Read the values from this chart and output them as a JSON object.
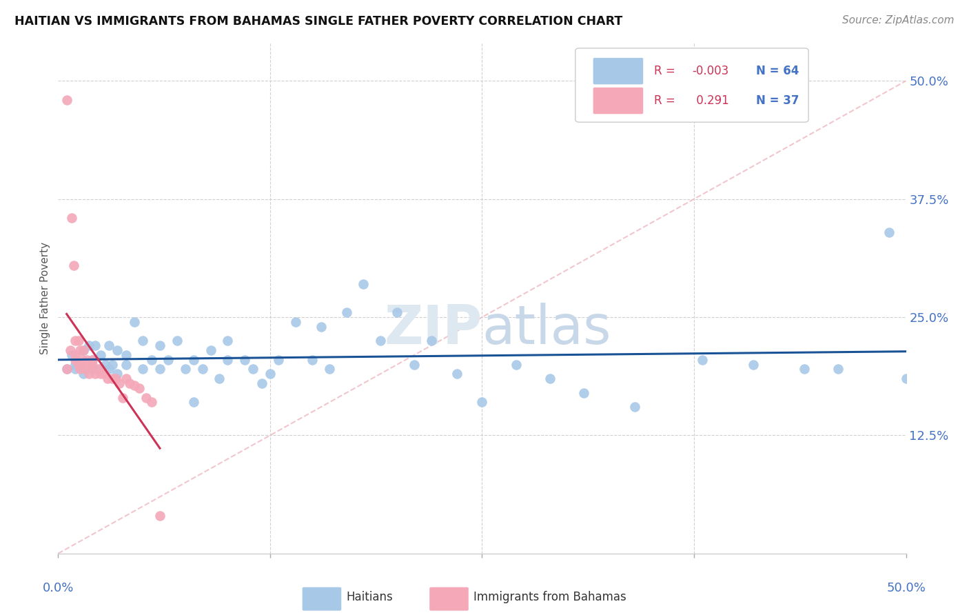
{
  "title": "HAITIAN VS IMMIGRANTS FROM BAHAMAS SINGLE FATHER POVERTY CORRELATION CHART",
  "source": "Source: ZipAtlas.com",
  "ylabel": "Single Father Poverty",
  "legend1_r": "-0.003",
  "legend1_n": "64",
  "legend2_r": "0.291",
  "legend2_n": "37",
  "xlim": [
    0.0,
    0.5
  ],
  "ylim": [
    0.0,
    0.54
  ],
  "blue_color": "#a8c8e8",
  "pink_color": "#f4a8b8",
  "blue_line_color": "#1a5296",
  "pink_line_color": "#cc3355",
  "diagonal_color": "#f0c0c8",
  "background_color": "#ffffff",
  "watermark_zip": "ZIP",
  "watermark_atlas": "atlas",
  "ytick_values": [
    0.5,
    0.375,
    0.25,
    0.125
  ],
  "ytick_labels": [
    "50.0%",
    "37.5%",
    "25.0%",
    "12.5%"
  ],
  "haitians_x": [
    0.005,
    0.008,
    0.01,
    0.01,
    0.012,
    0.015,
    0.015,
    0.018,
    0.02,
    0.02,
    0.022,
    0.025,
    0.025,
    0.028,
    0.03,
    0.03,
    0.032,
    0.035,
    0.035,
    0.04,
    0.04,
    0.045,
    0.05,
    0.05,
    0.055,
    0.06,
    0.06,
    0.065,
    0.07,
    0.075,
    0.08,
    0.08,
    0.085,
    0.09,
    0.095,
    0.1,
    0.1,
    0.11,
    0.115,
    0.12,
    0.125,
    0.13,
    0.14,
    0.15,
    0.155,
    0.16,
    0.17,
    0.18,
    0.19,
    0.2,
    0.21,
    0.22,
    0.235,
    0.25,
    0.27,
    0.29,
    0.31,
    0.34,
    0.38,
    0.41,
    0.44,
    0.46,
    0.49,
    0.5
  ],
  "haitians_y": [
    0.195,
    0.21,
    0.2,
    0.195,
    0.2,
    0.215,
    0.19,
    0.22,
    0.205,
    0.195,
    0.22,
    0.195,
    0.21,
    0.2,
    0.22,
    0.195,
    0.2,
    0.215,
    0.19,
    0.21,
    0.2,
    0.245,
    0.225,
    0.195,
    0.205,
    0.22,
    0.195,
    0.205,
    0.225,
    0.195,
    0.205,
    0.16,
    0.195,
    0.215,
    0.185,
    0.225,
    0.205,
    0.205,
    0.195,
    0.18,
    0.19,
    0.205,
    0.245,
    0.205,
    0.24,
    0.195,
    0.255,
    0.285,
    0.225,
    0.255,
    0.2,
    0.225,
    0.19,
    0.16,
    0.2,
    0.185,
    0.17,
    0.155,
    0.205,
    0.2,
    0.195,
    0.195,
    0.34,
    0.185
  ],
  "bahamas_x": [
    0.005,
    0.005,
    0.007,
    0.008,
    0.009,
    0.01,
    0.01,
    0.01,
    0.012,
    0.012,
    0.013,
    0.013,
    0.014,
    0.015,
    0.015,
    0.016,
    0.017,
    0.018,
    0.019,
    0.02,
    0.02,
    0.022,
    0.024,
    0.025,
    0.027,
    0.029,
    0.032,
    0.034,
    0.036,
    0.038,
    0.04,
    0.042,
    0.045,
    0.048,
    0.052,
    0.055,
    0.06
  ],
  "bahamas_y": [
    0.48,
    0.195,
    0.215,
    0.355,
    0.305,
    0.225,
    0.205,
    0.21,
    0.225,
    0.2,
    0.215,
    0.195,
    0.205,
    0.215,
    0.2,
    0.195,
    0.205,
    0.19,
    0.2,
    0.205,
    0.2,
    0.19,
    0.195,
    0.19,
    0.19,
    0.185,
    0.185,
    0.185,
    0.18,
    0.165,
    0.185,
    0.18,
    0.178,
    0.175,
    0.165,
    0.16,
    0.04
  ]
}
